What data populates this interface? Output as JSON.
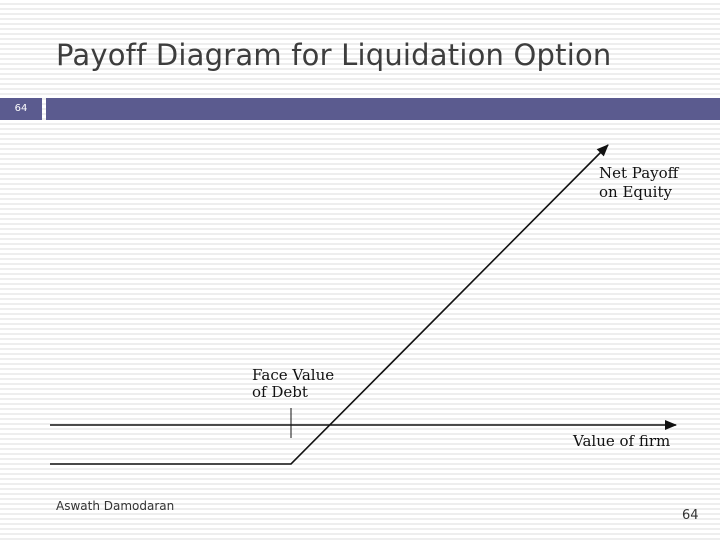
{
  "slide": {
    "title": "Payoff Diagram for Liquidation Option",
    "badge_number": "64",
    "author": "Aswath Damodaran",
    "page_number": "64"
  },
  "diagram": {
    "labels": {
      "net_payoff_line1": "Net Payoff",
      "net_payoff_line2": "on Equity",
      "face_value_line1": "Face Value",
      "face_value_line2": "of Debt",
      "x_axis": "Value of firm"
    }
  },
  "colors": {
    "header_bar": "#5b5b8f",
    "title_text": "#3d3d3d",
    "line": "#111111"
  }
}
